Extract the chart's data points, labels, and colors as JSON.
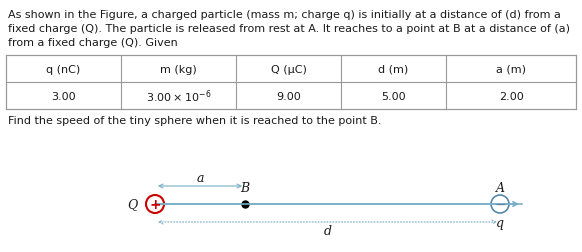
{
  "line1": "As shown in the Figure, a charged particle (mass m; charge q) is initially at a distance of (d) from a",
  "line2": "fixed charge (Q). The particle is released from rest at A. It reaches to a point at B at a distance of (a)",
  "line3": "from a fixed charge (Q). Given",
  "table_headers": [
    "q (nC)",
    "m (kg)",
    "Q (μC)",
    "d (m)",
    "a (m)"
  ],
  "table_values": [
    "3.00",
    "3.00×10^{-6}",
    "9.00",
    "5.00",
    "2.00"
  ],
  "question_text": "Find the speed of the tiny sphere when it is reached to the point B.",
  "bg_color": "#ffffff",
  "text_color": "#1a1a1a",
  "table_border_color": "#999999",
  "line_color": "#7aaec8",
  "dot_line_color": "#7aaec8",
  "Q_charge_color": "#cc0000",
  "q_charge_color": "#5588aa",
  "text_fontsize": 8.0,
  "table_fontsize": 8.0
}
